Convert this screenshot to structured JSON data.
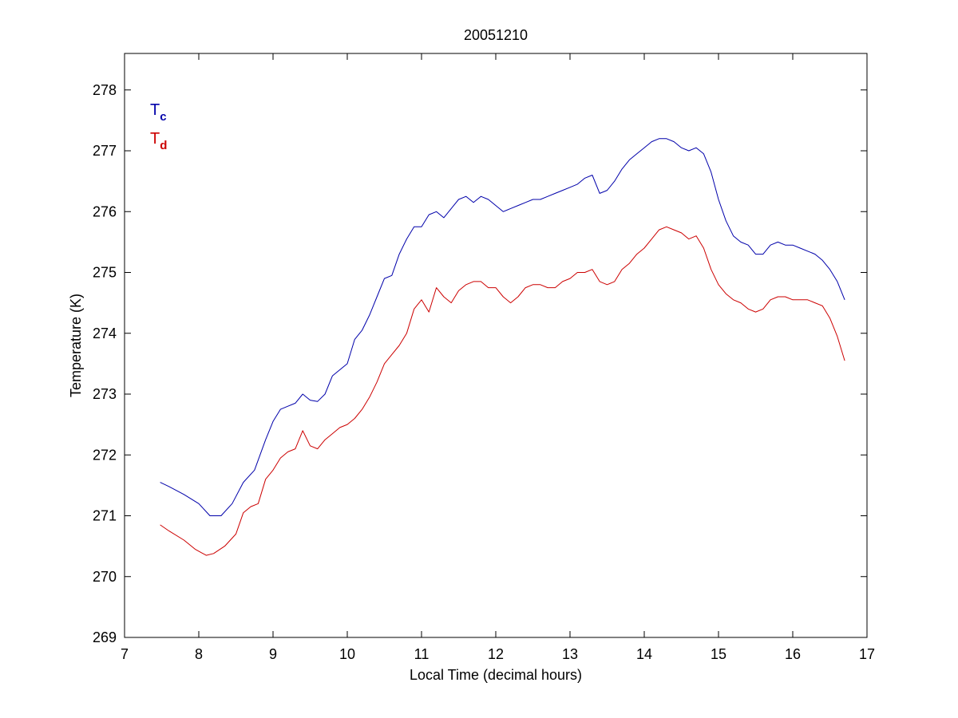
{
  "chart_data": {
    "type": "line",
    "title": "20051210",
    "xlabel": "Local Time (decimal hours)",
    "ylabel": "Temperature (K)",
    "xlim": [
      7,
      17
    ],
    "ylim": [
      269,
      278.6
    ],
    "xticks": [
      7,
      8,
      9,
      10,
      11,
      12,
      13,
      14,
      15,
      16,
      17
    ],
    "yticks": [
      269,
      270,
      271,
      272,
      273,
      274,
      275,
      276,
      277,
      278
    ],
    "grid": false,
    "legend_position": "top-left",
    "series": [
      {
        "name_main": "T",
        "name_sub": "c",
        "color": "#0000aa",
        "x": [
          7.48,
          7.6,
          7.8,
          8.0,
          8.15,
          8.3,
          8.45,
          8.6,
          8.75,
          8.9,
          9.0,
          9.1,
          9.2,
          9.3,
          9.4,
          9.5,
          9.6,
          9.7,
          9.8,
          9.9,
          10.0,
          10.1,
          10.2,
          10.3,
          10.4,
          10.5,
          10.6,
          10.7,
          10.8,
          10.9,
          11.0,
          11.1,
          11.2,
          11.3,
          11.4,
          11.5,
          11.6,
          11.7,
          11.8,
          11.9,
          12.0,
          12.1,
          12.2,
          12.3,
          12.4,
          12.5,
          12.6,
          12.7,
          12.8,
          12.9,
          13.0,
          13.1,
          13.2,
          13.3,
          13.4,
          13.5,
          13.6,
          13.7,
          13.8,
          13.9,
          14.0,
          14.1,
          14.2,
          14.3,
          14.4,
          14.5,
          14.6,
          14.7,
          14.8,
          14.9,
          15.0,
          15.1,
          15.2,
          15.3,
          15.4,
          15.5,
          15.6,
          15.7,
          15.8,
          15.9,
          16.0,
          16.1,
          16.2,
          16.3,
          16.4,
          16.5,
          16.6,
          16.7
        ],
        "values": [
          271.55,
          271.48,
          271.35,
          271.2,
          271.0,
          271.0,
          271.2,
          271.55,
          271.75,
          272.25,
          272.55,
          272.75,
          272.8,
          272.85,
          273.0,
          272.9,
          272.88,
          273.0,
          273.3,
          273.4,
          273.5,
          273.9,
          274.05,
          274.3,
          274.6,
          274.9,
          274.95,
          275.3,
          275.55,
          275.75,
          275.75,
          275.95,
          276.0,
          275.9,
          276.05,
          276.2,
          276.25,
          276.15,
          276.25,
          276.2,
          276.1,
          276.0,
          276.05,
          276.1,
          276.15,
          276.2,
          276.2,
          276.25,
          276.3,
          276.35,
          276.4,
          276.45,
          276.55,
          276.6,
          276.3,
          276.35,
          276.5,
          276.7,
          276.85,
          276.95,
          277.05,
          277.15,
          277.2,
          277.2,
          277.15,
          277.05,
          277.0,
          277.05,
          276.95,
          276.65,
          276.2,
          275.85,
          275.6,
          275.5,
          275.45,
          275.3,
          275.3,
          275.45,
          275.5,
          275.45,
          275.45,
          275.4,
          275.35,
          275.3,
          275.2,
          275.05,
          274.85,
          274.55
        ]
      },
      {
        "name_main": "T",
        "name_sub": "d",
        "color": "#cc0000",
        "x": [
          7.48,
          7.6,
          7.8,
          7.95,
          8.1,
          8.2,
          8.35,
          8.5,
          8.6,
          8.7,
          8.8,
          8.9,
          9.0,
          9.1,
          9.2,
          9.3,
          9.4,
          9.5,
          9.6,
          9.7,
          9.8,
          9.9,
          10.0,
          10.1,
          10.2,
          10.3,
          10.4,
          10.5,
          10.6,
          10.7,
          10.8,
          10.9,
          11.0,
          11.1,
          11.2,
          11.3,
          11.4,
          11.5,
          11.6,
          11.7,
          11.8,
          11.9,
          12.0,
          12.1,
          12.2,
          12.3,
          12.4,
          12.5,
          12.6,
          12.7,
          12.8,
          12.9,
          13.0,
          13.1,
          13.2,
          13.3,
          13.4,
          13.5,
          13.6,
          13.7,
          13.8,
          13.9,
          14.0,
          14.1,
          14.2,
          14.3,
          14.4,
          14.5,
          14.6,
          14.7,
          14.8,
          14.9,
          15.0,
          15.1,
          15.2,
          15.3,
          15.4,
          15.5,
          15.6,
          15.7,
          15.8,
          15.9,
          16.0,
          16.1,
          16.2,
          16.3,
          16.4,
          16.5,
          16.6,
          16.7
        ],
        "values": [
          270.85,
          270.75,
          270.6,
          270.45,
          270.35,
          270.38,
          270.5,
          270.7,
          271.05,
          271.15,
          271.2,
          271.6,
          271.75,
          271.95,
          272.05,
          272.1,
          272.4,
          272.15,
          272.1,
          272.25,
          272.35,
          272.45,
          272.5,
          272.6,
          272.75,
          272.95,
          273.2,
          273.5,
          273.65,
          273.8,
          274.0,
          274.4,
          274.55,
          274.35,
          274.75,
          274.6,
          274.5,
          274.7,
          274.8,
          274.85,
          274.85,
          274.75,
          274.75,
          274.6,
          274.5,
          274.6,
          274.75,
          274.8,
          274.8,
          274.75,
          274.75,
          274.85,
          274.9,
          275.0,
          275.0,
          275.05,
          274.85,
          274.8,
          274.85,
          275.05,
          275.15,
          275.3,
          275.4,
          275.55,
          275.7,
          275.75,
          275.7,
          275.65,
          275.55,
          275.6,
          275.4,
          275.05,
          274.8,
          274.65,
          274.55,
          274.5,
          274.4,
          274.35,
          274.4,
          274.55,
          274.6,
          274.6,
          274.55,
          274.55,
          274.55,
          274.5,
          274.45,
          274.25,
          273.95,
          273.55
        ]
      }
    ]
  }
}
